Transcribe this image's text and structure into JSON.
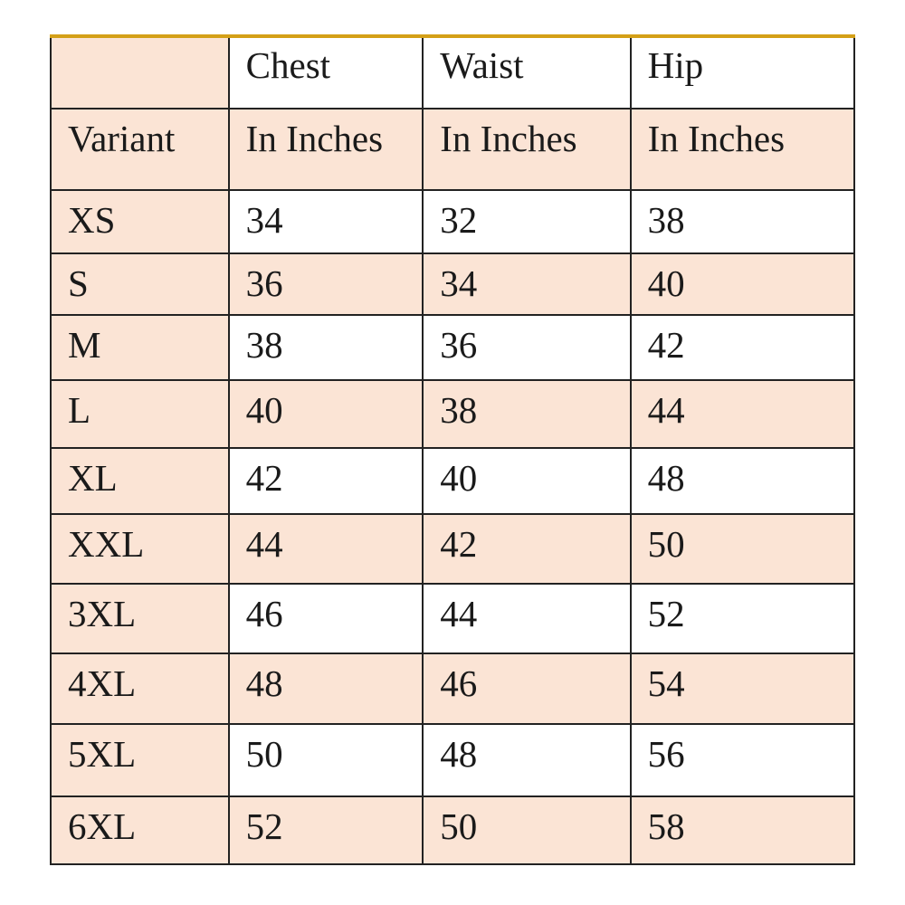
{
  "colors": {
    "peach": "#fbe4d5",
    "white": "#ffffff",
    "top_border": "#d4a017"
  },
  "header": {
    "row1": [
      "",
      "Chest",
      "Waist",
      "Hip"
    ],
    "row2": [
      "Variant",
      "In Inches",
      "In Inches",
      "In Inches"
    ]
  },
  "rows": [
    {
      "variant": "XS",
      "chest": "34",
      "waist": "32",
      "hip": "38"
    },
    {
      "variant": "S",
      "chest": "36",
      "waist": "34",
      "hip": "40"
    },
    {
      "variant": "M",
      "chest": "38",
      "waist": "36",
      "hip": "42"
    },
    {
      "variant": "L",
      "chest": "40",
      "waist": "38",
      "hip": "44"
    },
    {
      "variant": "XL",
      "chest": "42",
      "waist": "40",
      "hip": "48"
    },
    {
      "variant": "XXL",
      "chest": "44",
      "waist": "42",
      "hip": "50"
    },
    {
      "variant": "3XL",
      "chest": "46",
      "waist": "44",
      "hip": "52"
    },
    {
      "variant": "4XL",
      "chest": "48",
      "waist": "46",
      "hip": "54"
    },
    {
      "variant": "5XL",
      "chest": "50",
      "waist": "48",
      "hip": "56"
    },
    {
      "variant": "6XL",
      "chest": "52",
      "waist": "50",
      "hip": "58"
    }
  ]
}
